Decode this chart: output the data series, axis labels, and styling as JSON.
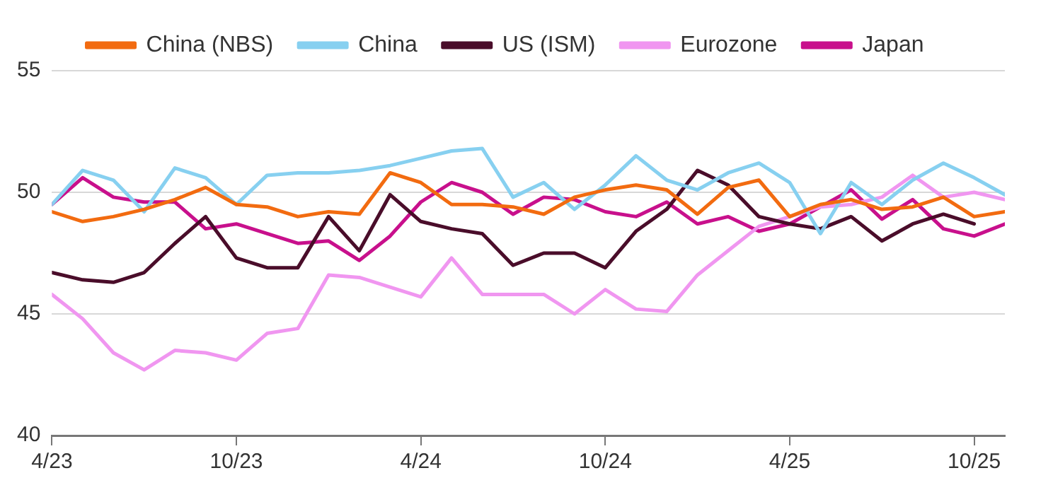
{
  "chart_data": {
    "type": "line",
    "x": [
      "2023-04",
      "2023-05",
      "2023-06",
      "2023-07",
      "2023-08",
      "2023-09",
      "2023-10",
      "2023-11",
      "2023-12",
      "2024-01",
      "2024-02",
      "2024-03",
      "2024-04",
      "2024-05",
      "2024-06",
      "2024-07",
      "2024-08",
      "2024-09",
      "2024-10",
      "2024-11",
      "2024-12",
      "2025-01",
      "2025-02",
      "2025-03",
      "2025-04",
      "2025-05",
      "2025-06",
      "2025-07",
      "2025-08",
      "2025-09",
      "2025-10",
      "2025-11"
    ],
    "series": [
      {
        "name": "China (NBS)",
        "color": "#f26b10",
        "values": [
          49.2,
          48.8,
          49.0,
          49.3,
          49.7,
          50.2,
          49.5,
          49.4,
          49.0,
          49.2,
          49.1,
          50.8,
          50.4,
          49.5,
          49.5,
          49.4,
          49.1,
          49.8,
          50.1,
          50.3,
          50.1,
          49.1,
          50.2,
          50.5,
          49.0,
          49.5,
          49.7,
          49.3,
          49.4,
          49.8,
          49.0,
          49.2
        ]
      },
      {
        "name": "China",
        "color": "#87d0f0",
        "values": [
          49.5,
          50.9,
          50.5,
          49.2,
          51.0,
          50.6,
          49.5,
          50.7,
          50.8,
          50.8,
          50.9,
          51.1,
          51.4,
          51.7,
          51.8,
          49.8,
          50.4,
          49.3,
          50.3,
          51.5,
          50.5,
          50.1,
          50.8,
          51.2,
          50.4,
          48.3,
          50.4,
          49.5,
          50.5,
          51.2,
          50.6,
          49.9
        ]
      },
      {
        "name": "US (ISM)",
        "color": "#4a0d2a",
        "values": [
          46.7,
          46.4,
          46.3,
          46.7,
          47.9,
          49.0,
          47.3,
          46.9,
          46.9,
          49.0,
          47.6,
          49.9,
          48.8,
          48.5,
          48.3,
          47.0,
          47.5,
          47.5,
          46.9,
          48.4,
          49.3,
          50.9,
          50.3,
          49.0,
          48.7,
          48.5,
          49.0,
          48.0,
          48.7,
          49.1,
          48.7,
          null
        ]
      },
      {
        "name": "Eurozone",
        "color": "#f096f0",
        "values": [
          45.8,
          44.8,
          43.4,
          42.7,
          43.5,
          43.4,
          43.1,
          44.2,
          44.4,
          46.6,
          46.5,
          46.1,
          45.7,
          47.3,
          45.8,
          45.8,
          45.8,
          45.0,
          46.0,
          45.2,
          45.1,
          46.6,
          47.6,
          48.6,
          49.0,
          49.4,
          49.5,
          49.8,
          50.7,
          49.8,
          50.0,
          49.7
        ]
      },
      {
        "name": "Japan",
        "color": "#c8108c",
        "values": [
          49.5,
          50.6,
          49.8,
          49.6,
          49.6,
          48.5,
          48.7,
          48.3,
          47.9,
          48.0,
          47.2,
          48.2,
          49.6,
          50.4,
          50.0,
          49.1,
          49.8,
          49.7,
          49.2,
          49.0,
          49.6,
          48.7,
          49.0,
          48.4,
          48.7,
          49.4,
          50.1,
          48.9,
          49.7,
          48.5,
          48.2,
          48.7
        ]
      }
    ],
    "xlim": [
      "2023-04",
      "2025-11"
    ],
    "xticks": [
      {
        "value": "2023-04",
        "label": "4/23"
      },
      {
        "value": "2023-10",
        "label": "10/23"
      },
      {
        "value": "2024-04",
        "label": "4/24"
      },
      {
        "value": "2024-10",
        "label": "10/24"
      },
      {
        "value": "2025-04",
        "label": "4/25"
      },
      {
        "value": "2025-10",
        "label": "10/25"
      }
    ],
    "ylim": [
      40,
      55
    ],
    "yticks": [
      40,
      45,
      50,
      55
    ],
    "grid": "y",
    "legend": "top",
    "marker": "none",
    "line_style": "solid"
  }
}
